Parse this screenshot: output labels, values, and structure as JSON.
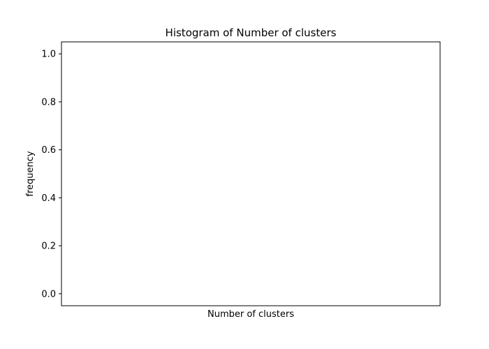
{
  "chart_data": {
    "type": "bar",
    "title": "Histogram of Number of clusters",
    "xlabel": "Number of clusters",
    "ylabel": "frequency",
    "ylim": [
      -0.05,
      1.05
    ],
    "y_ticks": [
      0.0,
      0.2,
      0.4,
      0.6,
      0.8,
      1.0
    ],
    "y_tick_labels": [
      "0.0",
      "0.2",
      "0.4",
      "0.6",
      "0.8",
      "1.0"
    ],
    "categories": [],
    "values": [],
    "grid": false,
    "legend": "none"
  }
}
